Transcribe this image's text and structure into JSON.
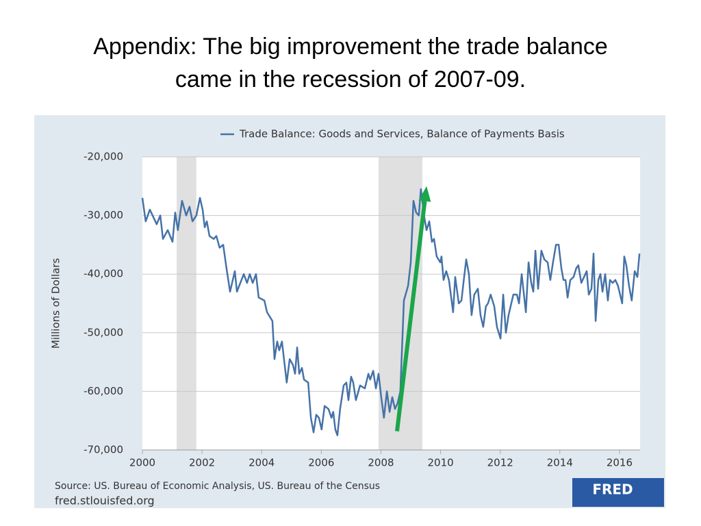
{
  "chart_data": {
    "type": "line",
    "slide_title": "Appendix: The big improvement the trade balance came in the recession of 2007-09.",
    "ylabel": "Millions of Dollars",
    "source": "Source: US. Bureau of Economic Analysis, US. Bureau of the Census",
    "url": "fred.stlouisfed.org",
    "logo": "FRED",
    "xlim": [
      2000,
      2016.69
    ],
    "xticks": [
      2000,
      2002,
      2004,
      2006,
      2008,
      2010,
      2012,
      2014,
      2016
    ],
    "ylim": [
      -70000,
      -20000
    ],
    "yticks": [
      {
        "value": -70000,
        "label": "-70,000"
      },
      {
        "value": -60000,
        "label": "-60,000"
      },
      {
        "value": -50000,
        "label": "-50,000"
      },
      {
        "value": -40000,
        "label": "-40,000"
      },
      {
        "value": -30000,
        "label": "-30,000"
      },
      {
        "value": -20000,
        "label": "-20,000"
      }
    ],
    "grid": true,
    "recessions": [
      [
        2001.15,
        2001.81
      ],
      [
        2007.92,
        2009.39
      ]
    ],
    "arrow": {
      "color": "#1aa64a",
      "x": [
        2008.54,
        2009.53
      ],
      "y": [
        -66800,
        -25000
      ]
    },
    "x": [
      2000.0,
      2000.11,
      2000.25,
      2000.48,
      2000.6,
      2000.69,
      2000.85,
      2001.01,
      2001.1,
      2001.19,
      2001.33,
      2001.47,
      2001.58,
      2001.68,
      2001.81,
      2001.93,
      2002.02,
      2002.09,
      2002.16,
      2002.25,
      2002.39,
      2002.48,
      2002.59,
      2002.71,
      2002.82,
      2002.94,
      2003.1,
      2003.17,
      2003.4,
      2003.51,
      2003.6,
      2003.7,
      2003.81,
      2003.9,
      2004.09,
      2004.18,
      2004.36,
      2004.43,
      2004.52,
      2004.59,
      2004.68,
      2004.84,
      2004.94,
      2005.05,
      2005.12,
      2005.19,
      2005.26,
      2005.35,
      2005.42,
      2005.56,
      2005.65,
      2005.74,
      2005.83,
      2005.92,
      2006.01,
      2006.11,
      2006.24,
      2006.34,
      2006.4,
      2006.47,
      2006.54,
      2006.63,
      2006.75,
      2006.84,
      2006.91,
      2007.0,
      2007.07,
      2007.16,
      2007.3,
      2007.46,
      2007.58,
      2007.64,
      2007.74,
      2007.83,
      2007.92,
      2008.01,
      2008.1,
      2008.2,
      2008.29,
      2008.38,
      2008.47,
      2008.56,
      2008.65,
      2008.77,
      2008.91,
      2009.0,
      2009.09,
      2009.18,
      2009.27,
      2009.34,
      2009.46,
      2009.53,
      2009.62,
      2009.71,
      2009.78,
      2009.87,
      2009.99,
      2010.03,
      2010.1,
      2010.19,
      2010.28,
      2010.42,
      2010.49,
      2010.61,
      2010.7,
      2010.79,
      2010.86,
      2010.95,
      2011.04,
      2011.13,
      2011.25,
      2011.34,
      2011.43,
      2011.52,
      2011.59,
      2011.68,
      2011.8,
      2011.89,
      2012.01,
      2012.1,
      2012.19,
      2012.28,
      2012.44,
      2012.56,
      2012.63,
      2012.72,
      2012.86,
      2012.95,
      2013.04,
      2013.11,
      2013.18,
      2013.27,
      2013.38,
      2013.48,
      2013.59,
      2013.68,
      2013.77,
      2013.87,
      2013.96,
      2014.05,
      2014.12,
      2014.19,
      2014.26,
      2014.35,
      2014.46,
      2014.55,
      2014.62,
      2014.72,
      2014.81,
      2014.9,
      2014.97,
      2015.06,
      2015.13,
      2015.2,
      2015.29,
      2015.36,
      2015.43,
      2015.52,
      2015.61,
      2015.68,
      2015.77,
      2015.86,
      2015.95,
      2016.02,
      2016.09,
      2016.16,
      2016.23,
      2016.32,
      2016.41,
      2016.51,
      2016.6,
      2016.67
    ],
    "series": [
      {
        "name": "Trade Balance: Goods and Services, Balance of Payments Basis",
        "color": "#4572a7",
        "values": [
          -27000,
          -31000,
          -29000,
          -31500,
          -30000,
          -34000,
          -32500,
          -34500,
          -29500,
          -32500,
          -27500,
          -30000,
          -28500,
          -31000,
          -30000,
          -27000,
          -29000,
          -32000,
          -31000,
          -33500,
          -34000,
          -33500,
          -35500,
          -35000,
          -39000,
          -43000,
          -39500,
          -43000,
          -40000,
          -41500,
          -40000,
          -41500,
          -40000,
          -44000,
          -44500,
          -46500,
          -48000,
          -54500,
          -51500,
          -53000,
          -51500,
          -58500,
          -54500,
          -55500,
          -57000,
          -52500,
          -57000,
          -56000,
          -58000,
          -58500,
          -64500,
          -67000,
          -64000,
          -64500,
          -66500,
          -62500,
          -63000,
          -64500,
          -63500,
          -66500,
          -67500,
          -63000,
          -59000,
          -58500,
          -61500,
          -57500,
          -58500,
          -61500,
          -59000,
          -59500,
          -57000,
          -58000,
          -56500,
          -59500,
          -57000,
          -61000,
          -64500,
          -60000,
          -63500,
          -61000,
          -63000,
          -62000,
          -60000,
          -44500,
          -42000,
          -38000,
          -27500,
          -29500,
          -30000,
          -25500,
          -30500,
          -32500,
          -31000,
          -34500,
          -34000,
          -37000,
          -38000,
          -37000,
          -41000,
          -39500,
          -41000,
          -46500,
          -40500,
          -45000,
          -44500,
          -40500,
          -37500,
          -40000,
          -47000,
          -43500,
          -42500,
          -47000,
          -49000,
          -45500,
          -45000,
          -43500,
          -45500,
          -49000,
          -51000,
          -43500,
          -50000,
          -47000,
          -43500,
          -43500,
          -45000,
          -40000,
          -46500,
          -38000,
          -41500,
          -43000,
          -36000,
          -42500,
          -36000,
          -37500,
          -38000,
          -41000,
          -38000,
          -35000,
          -35000,
          -39000,
          -41000,
          -41000,
          -44000,
          -41000,
          -40500,
          -39000,
          -38500,
          -41500,
          -40500,
          -39500,
          -43500,
          -42500,
          -36500,
          -48000,
          -41000,
          -40000,
          -43000,
          -40000,
          -44500,
          -41000,
          -41500,
          -41000,
          -42000,
          -43500,
          -45000,
          -37000,
          -38500,
          -42000,
          -44500,
          -39500,
          -40500,
          -36500
        ]
      }
    ]
  }
}
